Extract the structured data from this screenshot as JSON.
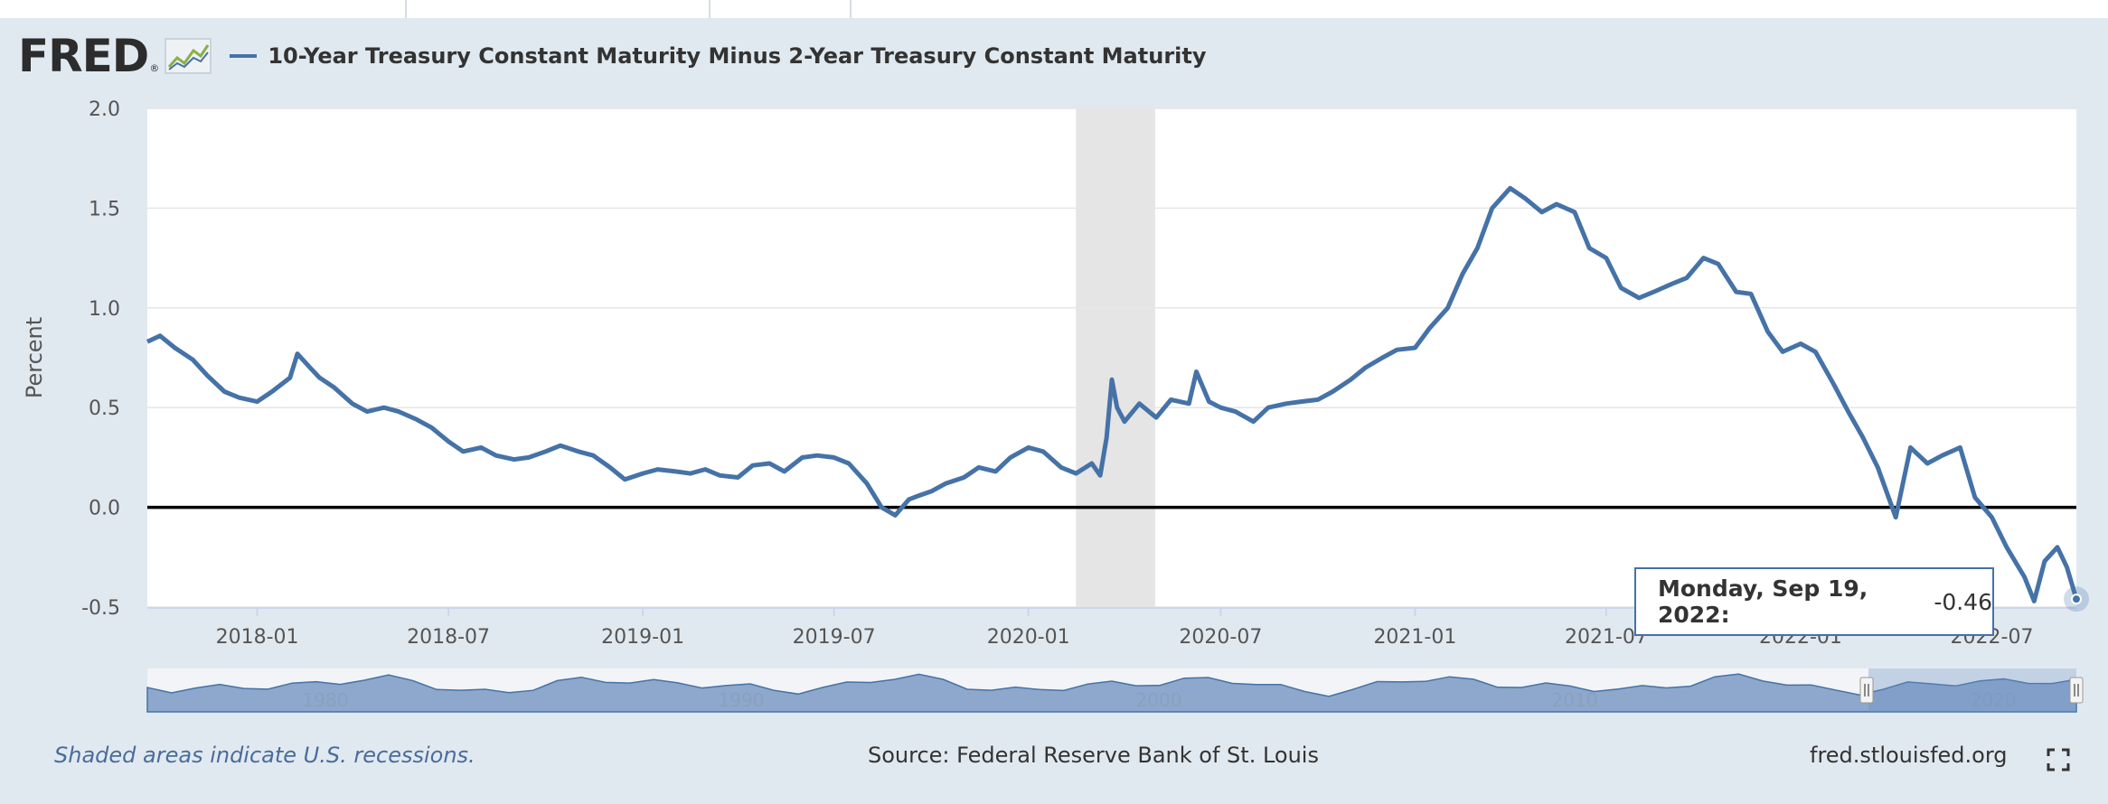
{
  "header": {
    "logo": "FRED",
    "series_title": "10-Year Treasury Constant Maturity Minus 2-Year Treasury Constant Maturity"
  },
  "footer": {
    "recession_note": "Shaded areas indicate U.S. recessions.",
    "source": "Source: Federal Reserve Bank of St. Louis",
    "site": "fred.stlouisfed.org"
  },
  "tooltip": {
    "date": "Monday, Sep 19, 2022:",
    "value": "-0.46"
  },
  "colors": {
    "series": "#4572a7",
    "recession": "#e5e5e5",
    "background": "#e1e9f0",
    "navigator_fill": "#8da8cc"
  },
  "navigator": {
    "labels": [
      "1980",
      "1990",
      "2000",
      "2010",
      "2020"
    ]
  },
  "chart_data": {
    "type": "line",
    "title": "10-Year Treasury Constant Maturity Minus 2-Year Treasury Constant Maturity",
    "xlabel": "",
    "ylabel": "Percent",
    "ylim": [
      -0.5,
      2.0
    ],
    "y_ticks": [
      "2.0",
      "1.5",
      "1.0",
      "0.5",
      "0.0",
      "-0.5"
    ],
    "x_ticks": [
      "2018-01",
      "2018-07",
      "2019-01",
      "2019-07",
      "2020-01",
      "2020-07",
      "2021-01",
      "2021-07",
      "2022-01",
      "2022-07"
    ],
    "x_range": [
      "2017-09-19",
      "2022-09-19"
    ],
    "recession": {
      "start": "2020-02-15",
      "end": "2020-04-30"
    },
    "series": [
      {
        "name": "10-Year Treasury Constant Maturity Minus 2-Year Treasury Constant Maturity",
        "points": [
          [
            "2017-09-19",
            0.83
          ],
          [
            "2017-10-01",
            0.86
          ],
          [
            "2017-10-15",
            0.8
          ],
          [
            "2017-11-01",
            0.74
          ],
          [
            "2017-11-15",
            0.66
          ],
          [
            "2017-12-01",
            0.58
          ],
          [
            "2017-12-15",
            0.55
          ],
          [
            "2018-01-01",
            0.53
          ],
          [
            "2018-01-15",
            0.58
          ],
          [
            "2018-02-01",
            0.65
          ],
          [
            "2018-02-08",
            0.77
          ],
          [
            "2018-02-20",
            0.7
          ],
          [
            "2018-03-01",
            0.65
          ],
          [
            "2018-03-15",
            0.6
          ],
          [
            "2018-04-01",
            0.52
          ],
          [
            "2018-04-15",
            0.48
          ],
          [
            "2018-05-01",
            0.5
          ],
          [
            "2018-05-15",
            0.48
          ],
          [
            "2018-06-01",
            0.44
          ],
          [
            "2018-06-15",
            0.4
          ],
          [
            "2018-07-01",
            0.33
          ],
          [
            "2018-07-15",
            0.28
          ],
          [
            "2018-08-01",
            0.3
          ],
          [
            "2018-08-15",
            0.26
          ],
          [
            "2018-09-01",
            0.24
          ],
          [
            "2018-09-15",
            0.25
          ],
          [
            "2018-10-01",
            0.28
          ],
          [
            "2018-10-15",
            0.31
          ],
          [
            "2018-11-01",
            0.28
          ],
          [
            "2018-11-15",
            0.26
          ],
          [
            "2018-12-01",
            0.2
          ],
          [
            "2018-12-15",
            0.14
          ],
          [
            "2019-01-01",
            0.17
          ],
          [
            "2019-01-15",
            0.19
          ],
          [
            "2019-02-01",
            0.18
          ],
          [
            "2019-02-15",
            0.17
          ],
          [
            "2019-03-01",
            0.19
          ],
          [
            "2019-03-15",
            0.16
          ],
          [
            "2019-04-01",
            0.15
          ],
          [
            "2019-04-15",
            0.21
          ],
          [
            "2019-05-01",
            0.22
          ],
          [
            "2019-05-15",
            0.18
          ],
          [
            "2019-06-01",
            0.25
          ],
          [
            "2019-06-15",
            0.26
          ],
          [
            "2019-07-01",
            0.25
          ],
          [
            "2019-07-15",
            0.22
          ],
          [
            "2019-08-01",
            0.12
          ],
          [
            "2019-08-15",
            0.0
          ],
          [
            "2019-08-28",
            -0.04
          ],
          [
            "2019-09-10",
            0.04
          ],
          [
            "2019-09-20",
            0.06
          ],
          [
            "2019-10-01",
            0.08
          ],
          [
            "2019-10-15",
            0.12
          ],
          [
            "2019-11-01",
            0.15
          ],
          [
            "2019-11-15",
            0.2
          ],
          [
            "2019-12-01",
            0.18
          ],
          [
            "2019-12-15",
            0.25
          ],
          [
            "2020-01-01",
            0.3
          ],
          [
            "2020-01-15",
            0.28
          ],
          [
            "2020-02-01",
            0.2
          ],
          [
            "2020-02-15",
            0.17
          ],
          [
            "2020-03-01",
            0.22
          ],
          [
            "2020-03-09",
            0.16
          ],
          [
            "2020-03-15",
            0.35
          ],
          [
            "2020-03-20",
            0.64
          ],
          [
            "2020-03-25",
            0.5
          ],
          [
            "2020-04-01",
            0.43
          ],
          [
            "2020-04-15",
            0.52
          ],
          [
            "2020-05-01",
            0.45
          ],
          [
            "2020-05-15",
            0.54
          ],
          [
            "2020-06-01",
            0.52
          ],
          [
            "2020-06-08",
            0.68
          ],
          [
            "2020-06-20",
            0.53
          ],
          [
            "2020-07-01",
            0.5
          ],
          [
            "2020-07-15",
            0.48
          ],
          [
            "2020-08-01",
            0.43
          ],
          [
            "2020-08-15",
            0.5
          ],
          [
            "2020-09-01",
            0.52
          ],
          [
            "2020-09-15",
            0.53
          ],
          [
            "2020-10-01",
            0.54
          ],
          [
            "2020-10-15",
            0.58
          ],
          [
            "2020-11-01",
            0.64
          ],
          [
            "2020-11-15",
            0.7
          ],
          [
            "2020-12-01",
            0.75
          ],
          [
            "2020-12-15",
            0.79
          ],
          [
            "2021-01-01",
            0.8
          ],
          [
            "2021-01-15",
            0.9
          ],
          [
            "2021-02-01",
            1.0
          ],
          [
            "2021-02-15",
            1.17
          ],
          [
            "2021-03-01",
            1.3
          ],
          [
            "2021-03-15",
            1.5
          ],
          [
            "2021-04-01",
            1.6
          ],
          [
            "2021-04-15",
            1.55
          ],
          [
            "2021-05-01",
            1.48
          ],
          [
            "2021-05-15",
            1.52
          ],
          [
            "2021-06-01",
            1.48
          ],
          [
            "2021-06-15",
            1.3
          ],
          [
            "2021-07-01",
            1.25
          ],
          [
            "2021-07-15",
            1.1
          ],
          [
            "2021-08-01",
            1.05
          ],
          [
            "2021-08-15",
            1.08
          ],
          [
            "2021-09-01",
            1.12
          ],
          [
            "2021-09-15",
            1.15
          ],
          [
            "2021-10-01",
            1.25
          ],
          [
            "2021-10-15",
            1.22
          ],
          [
            "2021-11-01",
            1.08
          ],
          [
            "2021-11-15",
            1.07
          ],
          [
            "2021-12-01",
            0.88
          ],
          [
            "2021-12-15",
            0.78
          ],
          [
            "2022-01-01",
            0.82
          ],
          [
            "2022-01-15",
            0.78
          ],
          [
            "2022-02-01",
            0.62
          ],
          [
            "2022-02-15",
            0.48
          ],
          [
            "2022-03-01",
            0.35
          ],
          [
            "2022-03-15",
            0.2
          ],
          [
            "2022-04-01",
            -0.05
          ],
          [
            "2022-04-15",
            0.3
          ],
          [
            "2022-05-01",
            0.22
          ],
          [
            "2022-05-15",
            0.26
          ],
          [
            "2022-06-01",
            0.3
          ],
          [
            "2022-06-15",
            0.05
          ],
          [
            "2022-07-01",
            -0.05
          ],
          [
            "2022-07-15",
            -0.2
          ],
          [
            "2022-08-01",
            -0.35
          ],
          [
            "2022-08-10",
            -0.47
          ],
          [
            "2022-08-20",
            -0.27
          ],
          [
            "2022-09-01",
            -0.2
          ],
          [
            "2022-09-10",
            -0.3
          ],
          [
            "2022-09-19",
            -0.46
          ]
        ]
      }
    ]
  }
}
